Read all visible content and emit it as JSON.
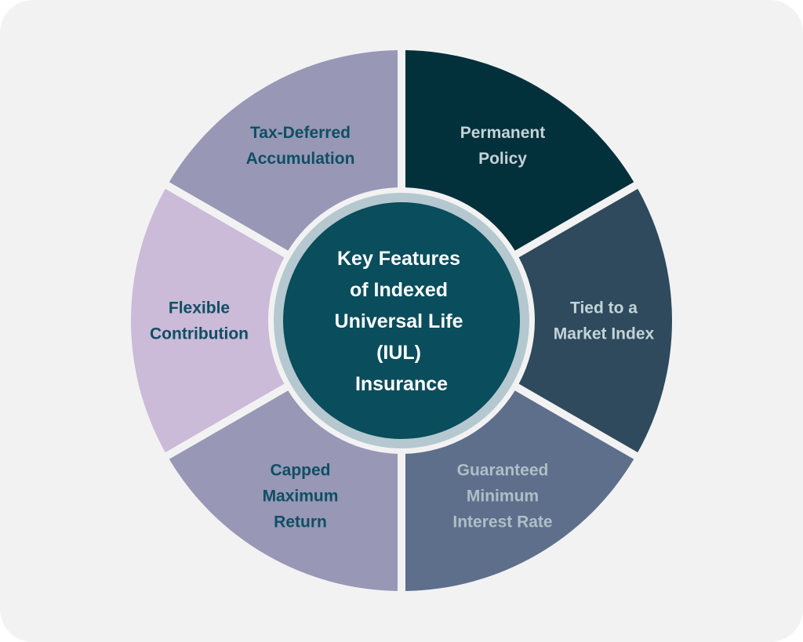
{
  "diagram": {
    "center": {
      "lines": [
        "Key Features",
        "of Indexed",
        "Universal Life",
        "(IUL)",
        "Insurance"
      ],
      "fill": "#0a4d5c",
      "ring_color": "#b5c8cf"
    },
    "segments": [
      {
        "lines": [
          "Permanent",
          "Policy"
        ],
        "fill": "#02303b",
        "text_color": "#c3d3d8"
      },
      {
        "lines": [
          "Tied to a",
          "Market Index"
        ],
        "fill": "#2e4a5c",
        "text_color": "#c3d3d8"
      },
      {
        "lines": [
          "Guaranteed",
          "Minimum",
          "Interest Rate"
        ],
        "fill": "#5e6f8c",
        "text_color": "#aebfc6"
      },
      {
        "lines": [
          "Capped",
          "Maximum",
          "Return"
        ],
        "fill": "#9897b6",
        "text_color": "#0e4f63"
      },
      {
        "lines": [
          "Flexible",
          "Contribution"
        ],
        "fill": "#cbbad8",
        "text_color": "#0e4f63"
      },
      {
        "lines": [
          "Tax-Deferred",
          "Accumulation"
        ],
        "fill": "#9897b6",
        "text_color": "#0e4f63"
      }
    ]
  }
}
